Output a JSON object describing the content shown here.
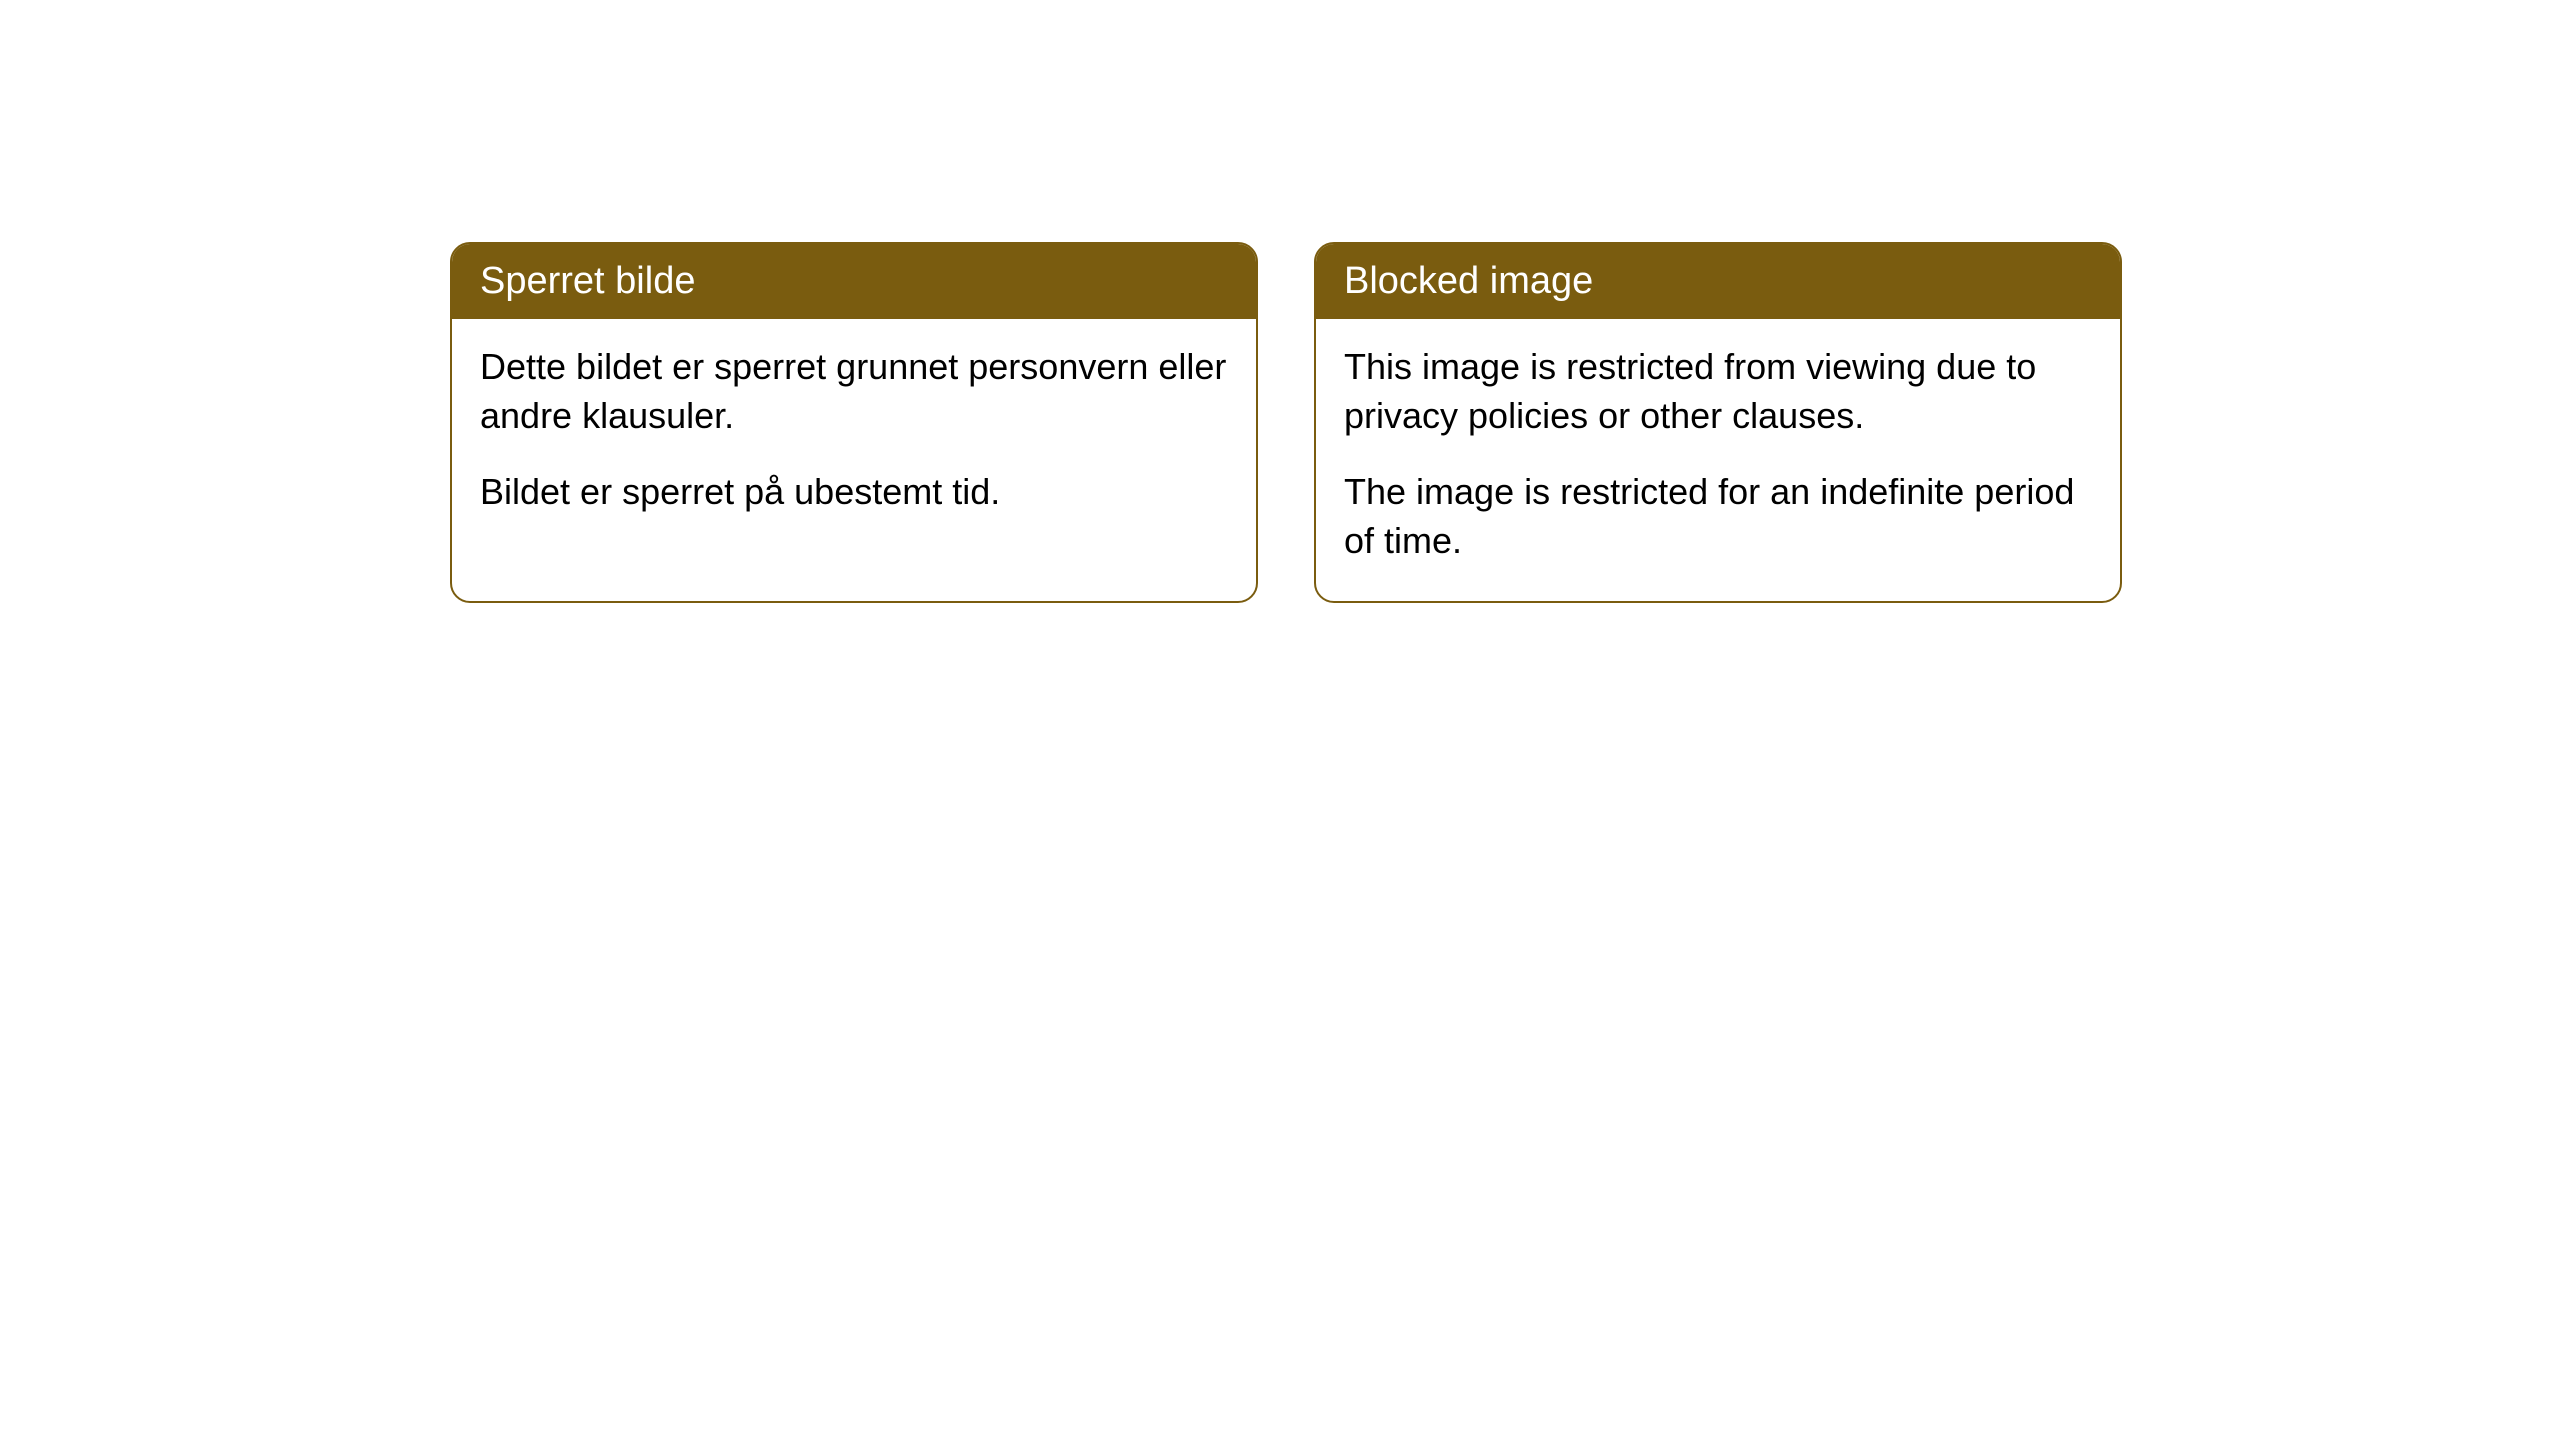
{
  "cards": [
    {
      "title": "Sperret bilde",
      "paragraph1": "Dette bildet er sperret grunnet personvern eller andre klausuler.",
      "paragraph2": "Bildet er sperret på ubestemt tid."
    },
    {
      "title": "Blocked image",
      "paragraph1": "This image is restricted from viewing due to privacy policies or other clauses.",
      "paragraph2": "The image is restricted for an indefinite period of time."
    }
  ],
  "styling": {
    "header_background": "#7a5c0f",
    "header_text_color": "#ffffff",
    "border_color": "#7a5c0f",
    "body_text_color": "#000000",
    "card_background": "#ffffff",
    "border_radius": 20,
    "header_fontsize": 38,
    "body_fontsize": 36
  }
}
